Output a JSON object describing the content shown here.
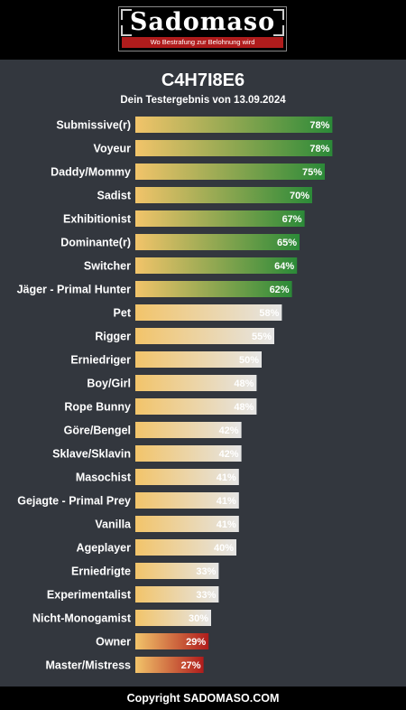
{
  "header": {
    "logo_text": "Sadomaso",
    "tagline": "Wo Bestrafung zur Belohnung wird"
  },
  "title": "C4H7I8E6",
  "subtitle": "Dein Testergebnis von 13.09.2024",
  "footer": "Copyright SADOMASO.COM",
  "colors": {
    "background": "#33373e",
    "gradient_start": "#f2c46a",
    "high_end": "#2b8a38",
    "mid_end": "#e5e5e5",
    "low_end": "#b01c1c"
  },
  "chart_data": {
    "type": "bar",
    "orientation": "horizontal",
    "categories": [
      "Submissive(r)",
      "Voyeur",
      "Daddy/Mommy",
      "Sadist",
      "Exhibitionist",
      "Dominante(r)",
      "Switcher",
      "Jäger - Primal Hunter",
      "Pet",
      "Rigger",
      "Erniedriger",
      "Boy/Girl",
      "Rope Bunny",
      "Göre/Bengel",
      "Sklave/Sklavin",
      "Masochist",
      "Gejagte - Primal Prey",
      "Vanilla",
      "Ageplayer",
      "Erniedrigte",
      "Experimentalist",
      "Nicht-Monogamist",
      "Owner",
      "Master/Mistress"
    ],
    "values": [
      78,
      78,
      75,
      70,
      67,
      65,
      64,
      62,
      58,
      55,
      50,
      48,
      48,
      42,
      42,
      41,
      41,
      41,
      40,
      33,
      33,
      30,
      29,
      27
    ],
    "value_labels": [
      "78%",
      "78%",
      "75%",
      "70%",
      "67%",
      "65%",
      "64%",
      "62%",
      "58%",
      "55%",
      "50%",
      "48%",
      "48%",
      "42%",
      "42%",
      "41%",
      "41%",
      "41%",
      "40%",
      "33%",
      "33%",
      "30%",
      "29%",
      "27%"
    ],
    "xlim": [
      0,
      100
    ],
    "color_bands": {
      "high_min": 60,
      "low_max": 29
    }
  }
}
